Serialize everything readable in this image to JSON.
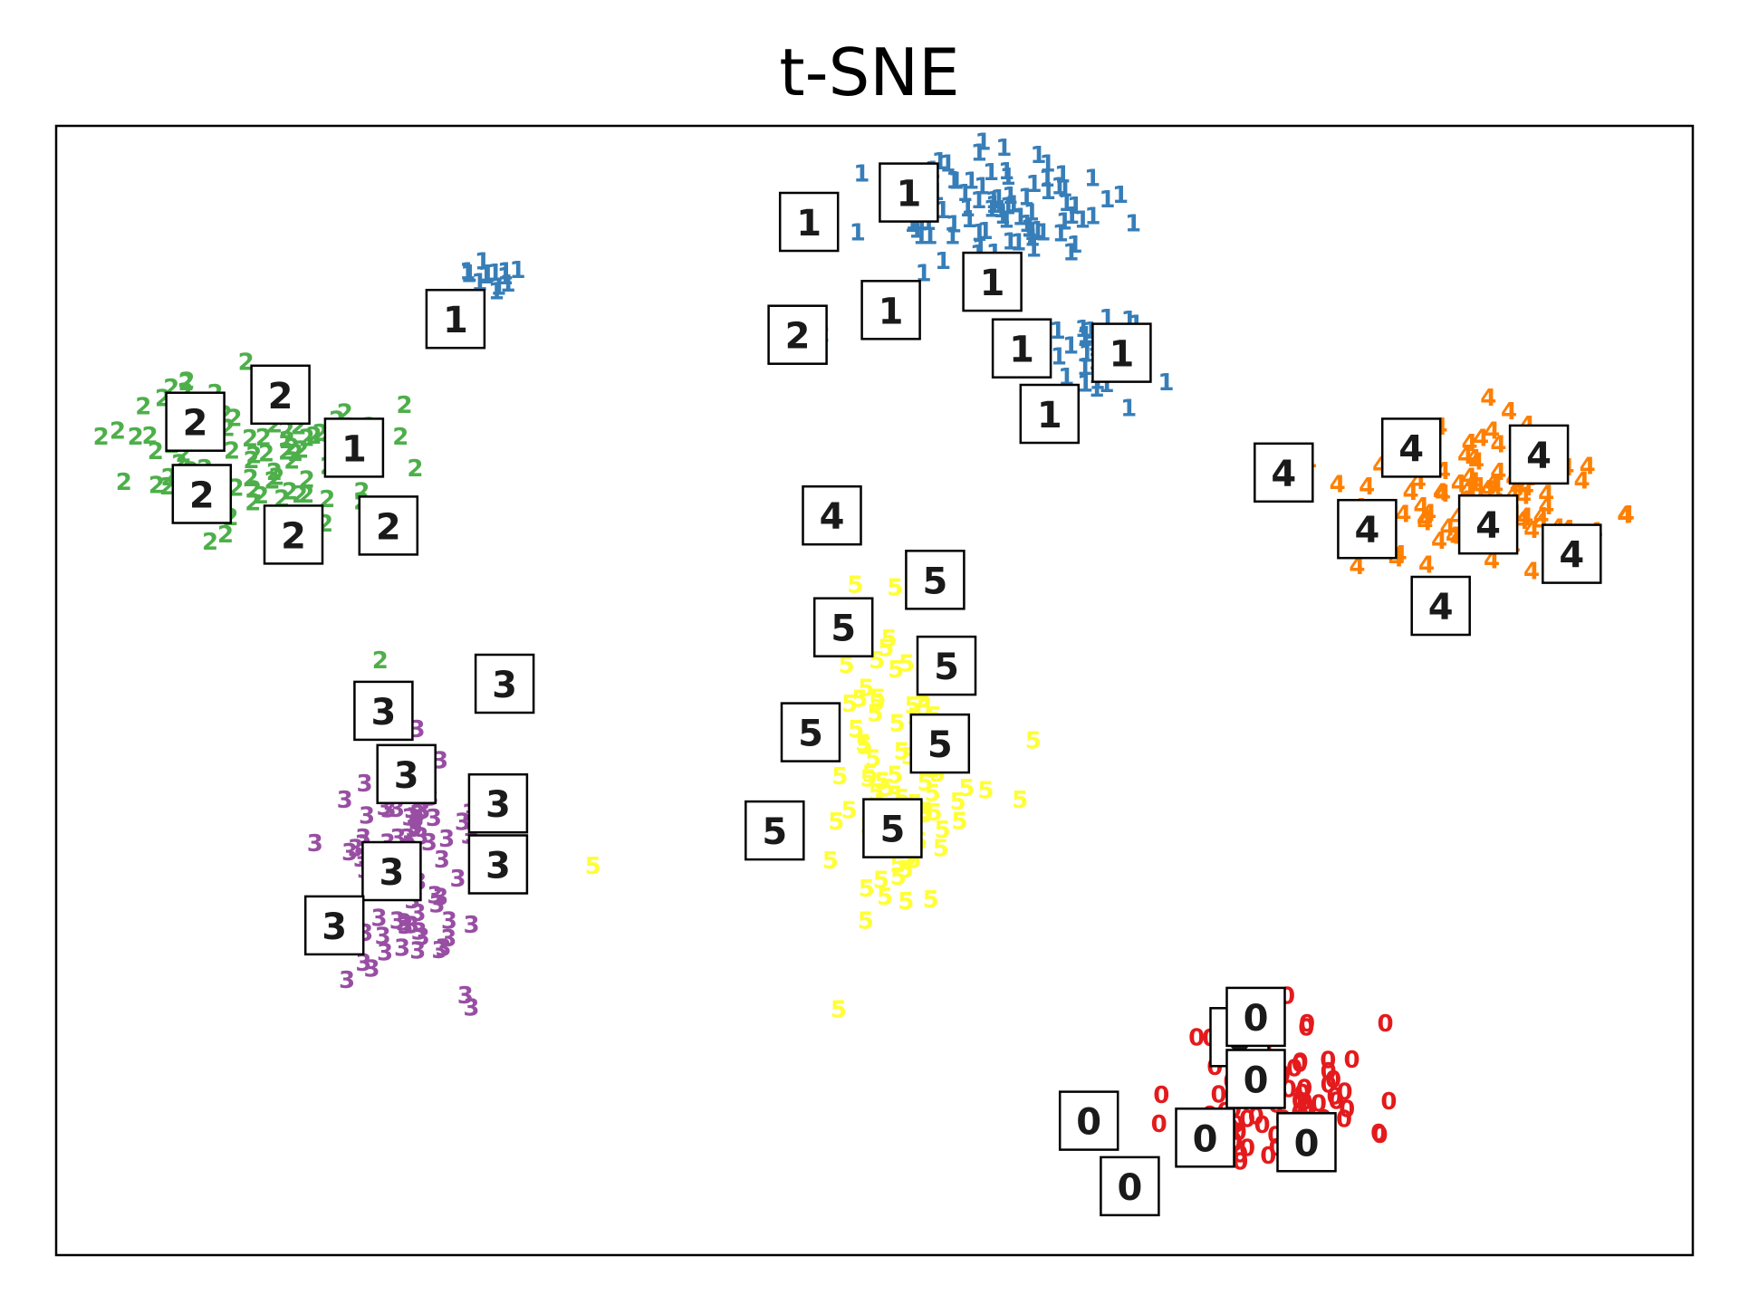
{
  "chart_data": {
    "type": "scatter",
    "title": "t-SNE",
    "xlabel": "",
    "ylabel": "",
    "xlim": [
      0,
      100
    ],
    "ylim": [
      0,
      100
    ],
    "axis_ticks": false,
    "grid": false,
    "legend": "none",
    "marker": "digit-text",
    "label_colors": {
      "0": "#e41a1c",
      "1": "#377eb8",
      "2": "#4daf4a",
      "3": "#984ea3",
      "4": "#ff7f00",
      "5": "#ffff33"
    },
    "clusters": [
      {
        "label": "0",
        "center": [
          74.6,
          13.9
        ],
        "spread": [
          5.2,
          6.0
        ],
        "count": 90,
        "seed": 11
      },
      {
        "label": "1",
        "center": [
          56.8,
          92.5
        ],
        "spread": [
          6.5,
          4.0
        ],
        "count": 90,
        "seed": 23
      },
      {
        "label": "1",
        "center": [
          63.5,
          79.5
        ],
        "spread": [
          3.5,
          3.2
        ],
        "count": 35,
        "seed": 29
      },
      {
        "label": "1",
        "center": [
          26.5,
          86.5
        ],
        "spread": [
          2.2,
          1.2
        ],
        "count": 14,
        "seed": 31
      },
      {
        "label": "2",
        "center": [
          12.5,
          71.0
        ],
        "spread": [
          7.5,
          6.0
        ],
        "count": 90,
        "seed": 37
      },
      {
        "label": "3",
        "center": [
          22.0,
          34.5
        ],
        "spread": [
          4.8,
          9.0
        ],
        "count": 90,
        "seed": 41
      },
      {
        "label": "4",
        "center": [
          86.5,
          67.5
        ],
        "spread": [
          8.0,
          6.5
        ],
        "count": 90,
        "seed": 43
      },
      {
        "label": "5",
        "center": [
          51.5,
          42.5
        ],
        "spread": [
          4.2,
          12.0
        ],
        "count": 90,
        "seed": 47
      }
    ],
    "extra_points": [
      {
        "label": "2",
        "x": 46.8,
        "y": 81.5
      },
      {
        "label": "2",
        "x": 19.8,
        "y": 52.6
      },
      {
        "label": "5",
        "x": 59.7,
        "y": 45.5
      },
      {
        "label": "5",
        "x": 32.8,
        "y": 34.4
      },
      {
        "label": "5",
        "x": 56.8,
        "y": 41.1
      }
    ],
    "image_thumbnails": [
      {
        "digit": "1",
        "x": 24.4,
        "y": 82.9
      },
      {
        "digit": "2",
        "x": 8.5,
        "y": 73.8
      },
      {
        "digit": "2",
        "x": 13.7,
        "y": 76.2
      },
      {
        "digit": "1",
        "x": 18.2,
        "y": 71.5
      },
      {
        "digit": "2",
        "x": 8.9,
        "y": 67.4
      },
      {
        "digit": "2",
        "x": 14.5,
        "y": 63.8
      },
      {
        "digit": "2",
        "x": 20.3,
        "y": 64.6
      },
      {
        "digit": "3",
        "x": 20.0,
        "y": 48.2
      },
      {
        "digit": "3",
        "x": 27.4,
        "y": 50.6
      },
      {
        "digit": "3",
        "x": 21.4,
        "y": 42.6
      },
      {
        "digit": "3",
        "x": 27.0,
        "y": 40.0
      },
      {
        "digit": "3",
        "x": 20.5,
        "y": 34.0
      },
      {
        "digit": "3",
        "x": 27.0,
        "y": 34.6
      },
      {
        "digit": "3",
        "x": 17.0,
        "y": 29.2
      },
      {
        "digit": "1",
        "x": 46.0,
        "y": 91.5
      },
      {
        "digit": "1",
        "x": 52.1,
        "y": 94.1
      },
      {
        "digit": "1",
        "x": 57.2,
        "y": 86.2
      },
      {
        "digit": "1",
        "x": 51.0,
        "y": 83.7
      },
      {
        "digit": "2",
        "x": 45.3,
        "y": 81.5
      },
      {
        "digit": "1",
        "x": 59.0,
        "y": 80.3
      },
      {
        "digit": "1",
        "x": 65.1,
        "y": 79.9
      },
      {
        "digit": "1",
        "x": 60.7,
        "y": 74.5
      },
      {
        "digit": "4",
        "x": 47.4,
        "y": 65.5
      },
      {
        "digit": "4",
        "x": 75.0,
        "y": 69.3
      },
      {
        "digit": "4",
        "x": 82.8,
        "y": 71.5
      },
      {
        "digit": "4",
        "x": 90.6,
        "y": 70.9
      },
      {
        "digit": "4",
        "x": 87.5,
        "y": 64.7
      },
      {
        "digit": "4",
        "x": 80.1,
        "y": 64.3
      },
      {
        "digit": "4",
        "x": 92.6,
        "y": 62.1
      },
      {
        "digit": "4",
        "x": 84.6,
        "y": 57.5
      },
      {
        "digit": "5",
        "x": 53.7,
        "y": 59.8
      },
      {
        "digit": "5",
        "x": 48.1,
        "y": 55.6
      },
      {
        "digit": "5",
        "x": 54.4,
        "y": 52.2
      },
      {
        "digit": "5",
        "x": 46.1,
        "y": 46.3
      },
      {
        "digit": "5",
        "x": 54.0,
        "y": 45.3
      },
      {
        "digit": "5",
        "x": 43.9,
        "y": 37.6
      },
      {
        "digit": "5",
        "x": 51.1,
        "y": 37.8
      },
      {
        "digit": "0",
        "x": 72.3,
        "y": 19.3
      },
      {
        "digit": "0",
        "x": 73.3,
        "y": 21.1
      },
      {
        "digit": "0",
        "x": 73.3,
        "y": 15.6
      },
      {
        "digit": "0",
        "x": 63.1,
        "y": 11.9
      },
      {
        "digit": "0",
        "x": 70.2,
        "y": 10.4
      },
      {
        "digit": "0",
        "x": 76.4,
        "y": 10.0
      },
      {
        "digit": "0",
        "x": 65.6,
        "y": 6.1
      }
    ]
  }
}
